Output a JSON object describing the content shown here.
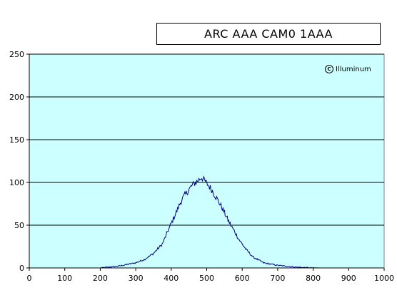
{
  "chart_data": {
    "type": "area",
    "title": "ARC AAA CAM0 1AAA",
    "watermark": "Illuminum",
    "watermark_icon": "c-circle-icon",
    "xlim": [
      0,
      1000
    ],
    "ylim": [
      0,
      250
    ],
    "x_ticks": [
      0,
      100,
      200,
      300,
      400,
      500,
      600,
      700,
      800,
      900,
      1000
    ],
    "y_ticks": [
      0,
      50,
      100,
      150,
      200,
      250
    ],
    "grid": "horizontal",
    "plot_background": "#ccffff",
    "line_color": "#000080",
    "x": [
      200,
      225,
      250,
      275,
      300,
      325,
      350,
      375,
      400,
      415,
      430,
      445,
      460,
      475,
      485,
      490,
      500,
      515,
      530,
      545,
      560,
      575,
      590,
      610,
      630,
      660,
      700,
      750,
      800,
      815
    ],
    "y": [
      0,
      1,
      2,
      4,
      6,
      10,
      17,
      28,
      52,
      66,
      80,
      89,
      97,
      102,
      106,
      104,
      99,
      91,
      80,
      69,
      56,
      45,
      34,
      22,
      13,
      6,
      3,
      1,
      0,
      0
    ]
  }
}
